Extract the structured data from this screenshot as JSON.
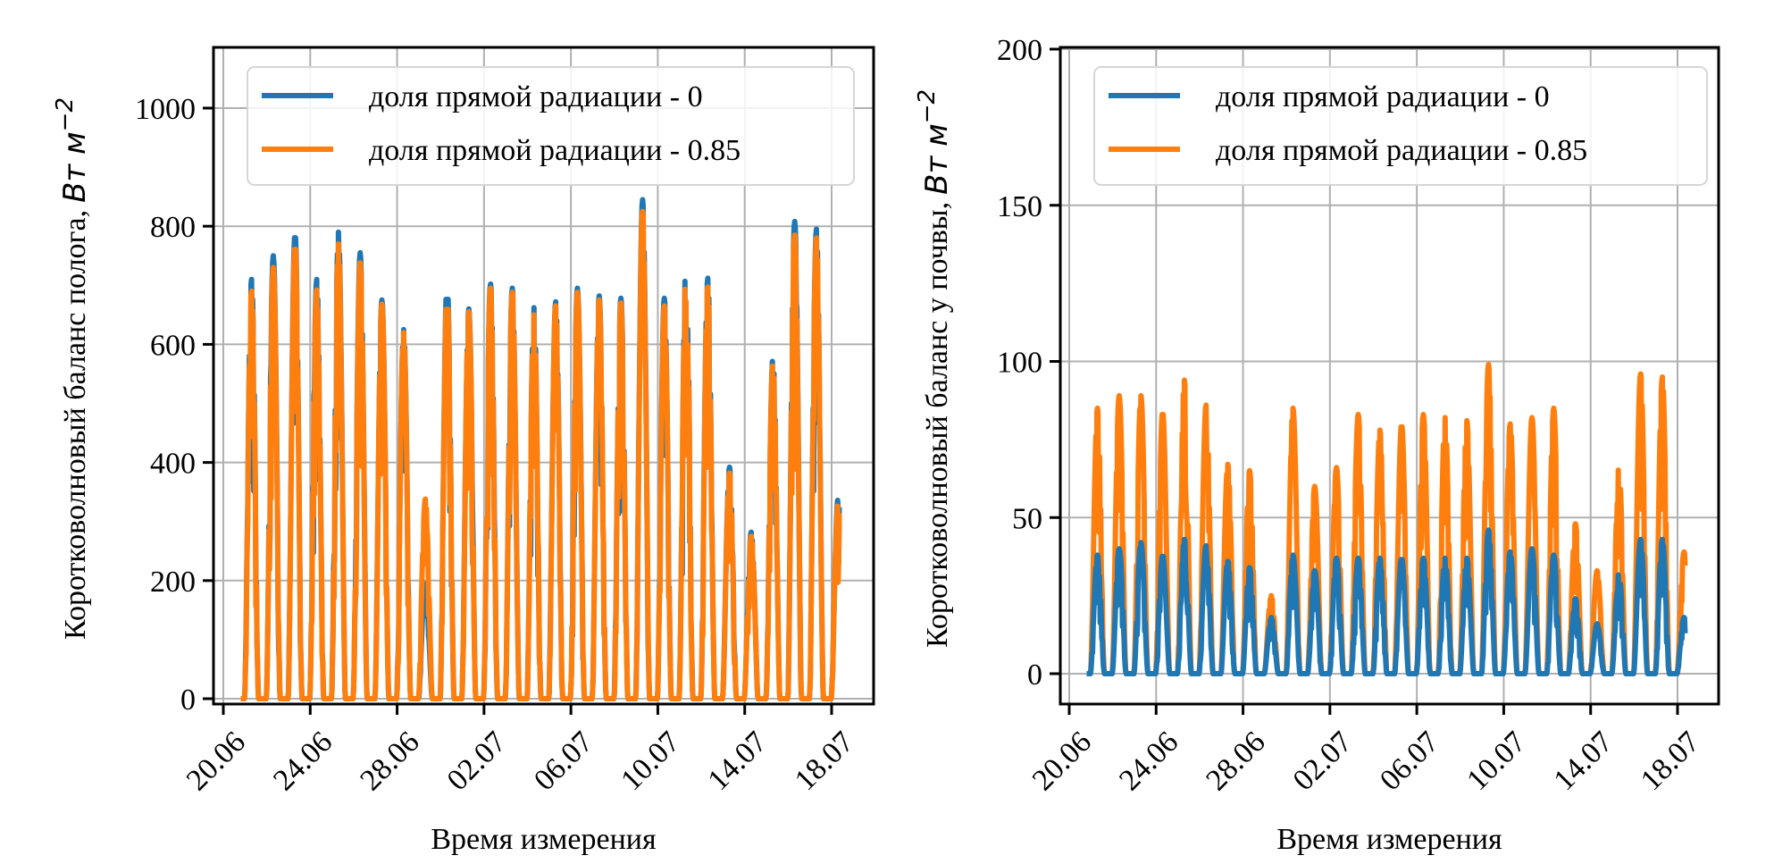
{
  "chart_data": [
    {
      "type": "line",
      "id": "canopy",
      "title": "",
      "xlabel": "Время измерения",
      "ylabel": "Коротковолновый баланс полога,",
      "ylabel_unit": "Вт м",
      "ylabel_unit_exp": "−2",
      "x_unit": "day (June 1 = day 1; July 1 = day 31)",
      "xlim": [
        20.4,
        38.7
      ],
      "ylim": [
        -10,
        1100
      ],
      "grid": true,
      "legend_position": "top-right",
      "xticks": [
        {
          "x": 20,
          "label": "20.06"
        },
        {
          "x": 24,
          "label": "24.06"
        },
        {
          "x": 28,
          "label": "28.06"
        },
        {
          "x": 32,
          "label": "02.07"
        },
        {
          "x": 36,
          "label": "06.07"
        },
        {
          "x": 40,
          "label": "10.07"
        },
        {
          "x": 44,
          "label": "14.07"
        },
        {
          "x": 48,
          "label": "18.07"
        }
      ],
      "yticks": [
        {
          "y": 0,
          "label": "0"
        },
        {
          "y": 200,
          "label": "200"
        },
        {
          "y": 400,
          "label": "400"
        },
        {
          "y": 600,
          "label": "600"
        },
        {
          "y": 800,
          "label": "800"
        },
        {
          "y": 1000,
          "label": "1000"
        }
      ],
      "series": [
        {
          "name": "доля прямой радиации - 0",
          "color": "#1f77b4",
          "start_day": 20.8,
          "end_day": 48.35,
          "daily_peaks": [
            710,
            750,
            790,
            710,
            790,
            755,
            675,
            625,
            195,
            710,
            660,
            702,
            695,
            662,
            672,
            695,
            682,
            678,
            845,
            678,
            742,
            712,
            392,
            282,
            578,
            808,
            795,
            340
          ]
        },
        {
          "name": "доля прямой радиации - 0.85",
          "color": "#ff7f0e",
          "start_day": 20.8,
          "end_day": 48.35,
          "daily_peaks": [
            690,
            730,
            770,
            692,
            770,
            738,
            668,
            620,
            338,
            692,
            655,
            695,
            688,
            650,
            665,
            688,
            675,
            670,
            825,
            665,
            728,
            697,
            382,
            275,
            570,
            785,
            780,
            330
          ]
        }
      ]
    },
    {
      "type": "line",
      "id": "soil",
      "title": "",
      "xlabel": "Время измерения",
      "ylabel": "Коротковолновый баланс у почвы,",
      "ylabel_unit": "Вт м",
      "ylabel_unit_exp": "−2",
      "x_unit": "day (June 1 = day 1; July 1 = day 31)",
      "xlim": [
        19.6,
        50.3
      ],
      "ylim": [
        -10,
        200
      ],
      "grid": true,
      "legend_position": "top-right",
      "xticks": [
        {
          "x": 20,
          "label": "20.06"
        },
        {
          "x": 24,
          "label": "24.06"
        },
        {
          "x": 28,
          "label": "28.06"
        },
        {
          "x": 32,
          "label": "02.07"
        },
        {
          "x": 36,
          "label": "06.07"
        },
        {
          "x": 40,
          "label": "10.07"
        },
        {
          "x": 44,
          "label": "14.07"
        },
        {
          "x": 48,
          "label": "18.07"
        }
      ],
      "yticks": [
        {
          "y": 0,
          "label": "0"
        },
        {
          "y": 50,
          "label": "50"
        },
        {
          "y": 100,
          "label": "100"
        },
        {
          "y": 150,
          "label": "150"
        },
        {
          "y": 200,
          "label": "200"
        }
      ],
      "series": [
        {
          "name": "доля прямой радиации - 0.85",
          "color": "#ff7f0e",
          "start_day": 20.8,
          "end_day": 48.35,
          "daily_peaks": [
            85,
            89,
            89,
            84,
            94,
            86,
            67,
            65,
            25,
            85,
            60,
            66,
            83,
            78,
            80,
            83,
            82,
            81,
            99,
            80,
            82,
            85,
            48,
            33,
            66,
            96,
            95,
            39
          ]
        },
        {
          "name": "доля прямой радиации - 0",
          "color": "#1f77b4",
          "start_day": 20.8,
          "end_day": 48.35,
          "daily_peaks": [
            38,
            40,
            42,
            38,
            43,
            41,
            36,
            34,
            18,
            38,
            33,
            37,
            37,
            37,
            37,
            37,
            37,
            37,
            46,
            39,
            40,
            38,
            24,
            16,
            32,
            43,
            43,
            18
          ]
        }
      ],
      "legend_order": [
        1,
        0
      ]
    }
  ],
  "legend": {
    "entries": [
      {
        "label": "доля прямой радиации - 0",
        "color": "#1f77b4"
      },
      {
        "label": "доля прямой радиации - 0.85",
        "color": "#ff7f0e"
      }
    ]
  }
}
